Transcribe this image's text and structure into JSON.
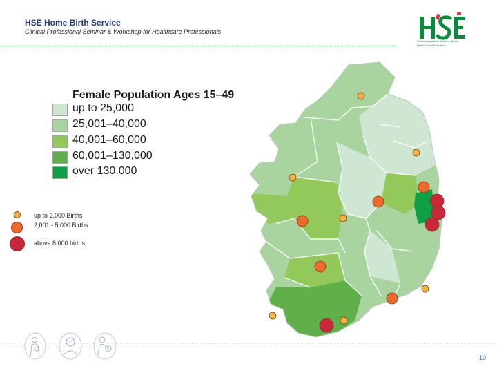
{
  "header": {
    "title": "HSE Home Birth Service",
    "subtitle": "Clinical Professional Seminar & Workshop for Healthcare Professionals"
  },
  "logo": {
    "icon": "hse-logo-icon",
    "line1": "Feidhmeannacht na Seirbhíse Sláinte",
    "line2": "Health Service Executive"
  },
  "legend": {
    "title": "Female Population Ages 15–49",
    "items": [
      {
        "label": "up to 25,000",
        "color": "#cfe6d2"
      },
      {
        "label": "25,001–40,000",
        "color": "#a9d4a0"
      },
      {
        "label": "40,001–60,000",
        "color": "#93c95a"
      },
      {
        "label": "60,001–130,000",
        "color": "#5fb04a"
      },
      {
        "label": "over 130,000",
        "color": "#0fa046"
      }
    ]
  },
  "births_legend": {
    "items": [
      {
        "label": "up to 2,000 Births",
        "color": "#f2b43a"
      },
      {
        "label": "2,001 - 5,000 Births",
        "color": "#ef6a2a"
      },
      {
        "label": "above 8,000 births",
        "color": "#c8283a"
      }
    ]
  },
  "map": {
    "icon": "ireland-map-icon",
    "marker_colors": {
      "small": "#f2b43a",
      "medium": "#ef6a2a",
      "large": "#c8283a"
    }
  },
  "footer": {
    "icons": [
      "mother-and-baby-icon",
      "baby-icon",
      "mother-holding-baby-icon"
    ],
    "page_number": "10"
  }
}
